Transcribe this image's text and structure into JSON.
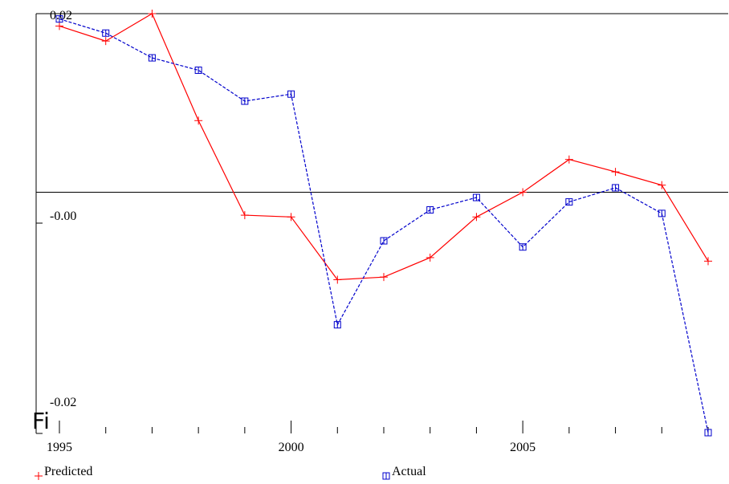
{
  "chart_data": {
    "type": "line",
    "x": [
      1995,
      1996,
      1997,
      1998,
      1999,
      2000,
      2001,
      2002,
      2003,
      2004,
      2005,
      2006,
      2007,
      2008,
      2009
    ],
    "series": [
      {
        "name": "Predicted",
        "color": "#ff0000",
        "marker": "plus",
        "line_style": "solid",
        "values": [
          0.0188,
          0.0171,
          0.0202,
          0.0081,
          -0.0026,
          -0.0028,
          -0.0099,
          -0.0096,
          -0.0074,
          -0.0028,
          0.0,
          0.0037,
          0.0023,
          0.0008,
          -0.0078
        ]
      },
      {
        "name": "Actual",
        "color": "#0000cc",
        "marker": "square",
        "line_style": "dashed",
        "values": [
          0.0196,
          0.018,
          0.0152,
          0.0138,
          0.0103,
          0.0111,
          -0.015,
          -0.0055,
          -0.002,
          -0.0006,
          -0.0062,
          -0.0011,
          0.0005,
          -0.0024,
          -0.0272
        ]
      }
    ],
    "x_ticks": [
      "1995",
      "2000",
      "2005"
    ],
    "y_ticks": [
      "0.02",
      "-0.00",
      "-0.02"
    ],
    "ylim": [
      -0.0272,
      0.0202
    ],
    "zero_line": true,
    "legend_position": "bottom"
  },
  "stray_text": "Fi"
}
